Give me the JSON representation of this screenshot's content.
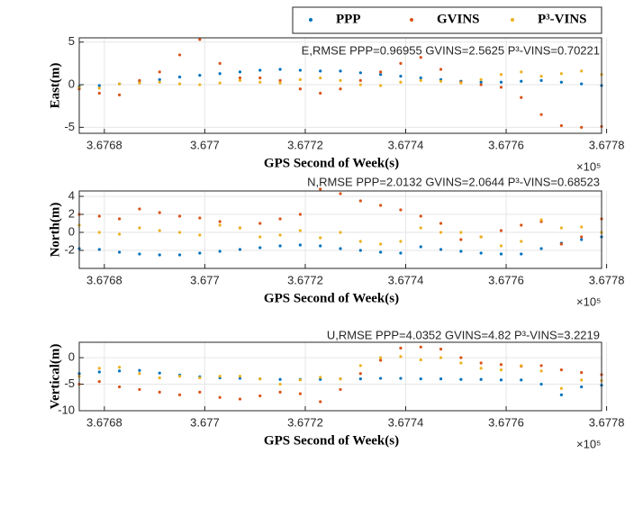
{
  "chart_data": [
    {
      "type": "scatter",
      "annotation": "E,RMSE PPP=0.96955 GVINS=2.5625 P³-VINS=0.70221",
      "xlabel": "GPS Second of Week(s)",
      "ylabel": "East(m)",
      "x_multiplier": "×10⁵",
      "grid": true,
      "legend": "top",
      "x": [
        3.67675,
        3.67679,
        3.67683,
        3.67687,
        3.67691,
        3.67695,
        3.67699,
        3.67703,
        3.67707,
        3.67711,
        3.67715,
        3.67719,
        3.67723,
        3.67727,
        3.67731,
        3.67735,
        3.67739,
        3.67743,
        3.67747,
        3.67751,
        3.67755,
        3.67759,
        3.67763,
        3.67767,
        3.67771,
        3.67775,
        3.67779
      ],
      "xlim": [
        3.67675,
        3.67779
      ],
      "xticks": [
        3.6768,
        3.677,
        3.6772,
        3.6774,
        3.6776,
        3.6778
      ],
      "ylim": [
        -5.7,
        5.5
      ],
      "yticks": [
        -5,
        0,
        5
      ],
      "series": [
        {
          "name": "PPP",
          "color": "#0072bd",
          "values": [
            -0.2,
            -0.1,
            0.1,
            0.4,
            0.6,
            0.9,
            1.1,
            1.3,
            1.5,
            1.7,
            1.8,
            1.7,
            1.6,
            1.6,
            1.4,
            1.2,
            1.0,
            0.8,
            0.6,
            0.4,
            0.3,
            0.3,
            0.4,
            0.5,
            0.3,
            0.1,
            -0.1
          ]
        },
        {
          "name": "GVINS",
          "color": "#d95319",
          "values": [
            -0.5,
            -1.0,
            -1.2,
            0.5,
            1.5,
            3.5,
            5.3,
            2.5,
            0.8,
            0.8,
            0.5,
            -0.5,
            -1.0,
            -0.5,
            0.5,
            1.5,
            2.5,
            3.2,
            1.8,
            0.3,
            0.0,
            -0.3,
            -1.5,
            -3.5,
            -4.8,
            -5.0,
            -4.9
          ]
        },
        {
          "name": "P³-VINS",
          "color": "#edb120",
          "values": [
            -0.3,
            -0.4,
            0.1,
            0.2,
            0.3,
            0.1,
            0.0,
            0.2,
            0.5,
            0.3,
            0.2,
            0.6,
            0.8,
            0.5,
            0.0,
            -0.1,
            0.3,
            0.5,
            0.4,
            0.2,
            0.6,
            1.2,
            1.5,
            1.0,
            1.3,
            1.6,
            1.2
          ]
        }
      ]
    },
    {
      "type": "scatter",
      "annotation": "N,RMSE PPP=2.0132 GVINS=2.0644 P³-VINS=0.68523",
      "xlabel": "GPS Second of Week(s)",
      "ylabel": "North(m)",
      "x_multiplier": "×10⁵",
      "grid": true,
      "x": [
        3.67675,
        3.67679,
        3.67683,
        3.67687,
        3.67691,
        3.67695,
        3.67699,
        3.67703,
        3.67707,
        3.67711,
        3.67715,
        3.67719,
        3.67723,
        3.67727,
        3.67731,
        3.67735,
        3.67739,
        3.67743,
        3.67747,
        3.67751,
        3.67755,
        3.67759,
        3.67763,
        3.67767,
        3.67771,
        3.67775,
        3.67779
      ],
      "xlim": [
        3.67675,
        3.67779
      ],
      "xticks": [
        3.6768,
        3.677,
        3.6772,
        3.6774,
        3.6776,
        3.6778
      ],
      "ylim": [
        -4,
        4.6
      ],
      "yticks": [
        -2,
        0,
        2,
        4
      ],
      "series": [
        {
          "color": "#0072bd",
          "values": [
            -1.8,
            -1.9,
            -2.2,
            -2.4,
            -2.5,
            -2.5,
            -2.3,
            -2.1,
            -1.9,
            -1.7,
            -1.5,
            -1.4,
            -1.5,
            -1.8,
            -2.0,
            -2.2,
            -2.3,
            -1.6,
            -1.9,
            -2.1,
            -2.3,
            -2.4,
            -2.4,
            -1.8,
            -1.2,
            -0.8,
            -0.5
          ]
        },
        {
          "color": "#d95319",
          "values": [
            2.0,
            1.8,
            1.5,
            2.6,
            2.2,
            1.8,
            1.6,
            1.2,
            0.5,
            1.0,
            1.5,
            2.0,
            4.8,
            4.3,
            3.5,
            3.0,
            2.5,
            1.8,
            1.0,
            -0.8,
            -0.5,
            0.2,
            0.8,
            1.2,
            -1.3,
            -0.5,
            1.5
          ]
        },
        {
          "color": "#edb120",
          "values": [
            0.8,
            0.0,
            -0.2,
            0.5,
            0.2,
            0.0,
            -0.3,
            0.8,
            0.5,
            -0.5,
            -0.3,
            0.2,
            -0.6,
            0.0,
            -1.0,
            -1.3,
            -1.0,
            0.5,
            0.0,
            0.0,
            -0.5,
            -1.5,
            -1.0,
            1.4,
            0.5,
            0.6,
            0.0
          ]
        }
      ]
    },
    {
      "type": "scatter",
      "annotation": "U,RMSE PPP=4.0352 GVINS=4.82 P³-VINS=3.2219",
      "xlabel": "GPS Second of Week(s)",
      "ylabel": "Vertical(m)",
      "x_multiplier": "×10⁵",
      "grid": true,
      "x": [
        3.67675,
        3.67679,
        3.67683,
        3.67687,
        3.67691,
        3.67695,
        3.67699,
        3.67703,
        3.67707,
        3.67711,
        3.67715,
        3.67719,
        3.67723,
        3.67727,
        3.67731,
        3.67735,
        3.67739,
        3.67743,
        3.67747,
        3.67751,
        3.67755,
        3.67759,
        3.67763,
        3.67767,
        3.67771,
        3.67775,
        3.67779
      ],
      "xlim": [
        3.67675,
        3.67779
      ],
      "xticks": [
        3.6768,
        3.677,
        3.6772,
        3.6774,
        3.6776,
        3.6778
      ],
      "ylim": [
        -10,
        2.9
      ],
      "yticks": [
        -10,
        -5,
        0
      ],
      "series": [
        {
          "color": "#0072bd",
          "values": [
            -3.0,
            -2.7,
            -2.5,
            -2.4,
            -2.9,
            -3.3,
            -3.6,
            -3.8,
            -3.9,
            -4.0,
            -4.1,
            -4.1,
            -4.1,
            -4.0,
            -4.0,
            -3.9,
            -3.9,
            -4.0,
            -4.0,
            -4.1,
            -4.1,
            -4.2,
            -4.2,
            -5.0,
            -7.0,
            -5.5,
            -5.2
          ]
        },
        {
          "color": "#d95319",
          "values": [
            -5.0,
            -4.5,
            -5.5,
            -6.0,
            -6.5,
            -7.0,
            -6.5,
            -7.5,
            -7.8,
            -7.2,
            -6.5,
            -6.8,
            -8.3,
            -6.0,
            -3.0,
            -0.5,
            1.8,
            2.0,
            1.6,
            0.0,
            -1.0,
            -1.3,
            -1.6,
            -1.5,
            -2.3,
            -2.8,
            -3.2
          ]
        },
        {
          "color": "#edb120",
          "values": [
            -3.5,
            -2.0,
            -1.8,
            -3.0,
            -3.8,
            -3.5,
            -3.8,
            -3.5,
            -3.5,
            -4.0,
            -5.0,
            -4.2,
            -3.7,
            -4.0,
            -1.5,
            0.0,
            0.2,
            -0.4,
            0.0,
            -1.0,
            -2.0,
            -2.3,
            -1.5,
            -2.5,
            -5.8,
            -4.2,
            -4.3
          ]
        }
      ]
    }
  ]
}
